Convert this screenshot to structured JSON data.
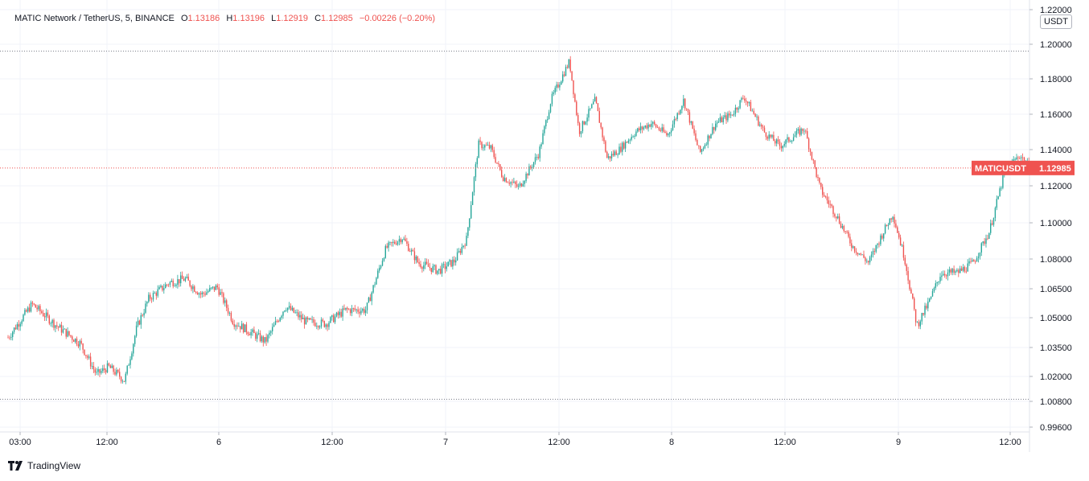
{
  "header": {
    "symbol": "MATIC Network / TetherUS, 5, BINANCE",
    "open_label": "O",
    "open": "1.13186",
    "high_label": "H",
    "high": "1.13196",
    "low_label": "L",
    "low": "1.12919",
    "close_label": "C",
    "close": "1.12985",
    "change": "−0.00226 (−0.20%)"
  },
  "price_axis": {
    "unit": "USDT"
  },
  "last_price_label": {
    "symbol": "MATICUSDT",
    "value": "1.12985"
  },
  "branding": {
    "name": "TradingView"
  },
  "chart_data": {
    "type": "candlestick",
    "interval": "5",
    "exchange": "BINANCE",
    "y_ticks": [
      "1.22000",
      "1.20000",
      "1.18000",
      "1.16000",
      "1.14000",
      "1.12000",
      "1.10000",
      "1.08000",
      "1.06500",
      "1.05000",
      "1.03500",
      "1.02000",
      "1.00800",
      "0.99600"
    ],
    "x_ticks": [
      "03:00",
      "12:00",
      "6",
      "12:00",
      "7",
      "12:00",
      "8",
      "12:00",
      "9",
      "12:00"
    ],
    "ylim": [
      0.996,
      1.22
    ],
    "last_price": 1.12985,
    "range_high": 1.196,
    "range_low": 1.009,
    "colors": {
      "up": "#26a69a",
      "down": "#ef5350",
      "grid": "#f0f3fa",
      "text": "#131722"
    },
    "close_path": [
      [
        0,
        1.04
      ],
      [
        30,
        1.057
      ],
      [
        60,
        1.046
      ],
      [
        90,
        1.037
      ],
      [
        110,
        1.021
      ],
      [
        125,
        1.025
      ],
      [
        145,
        1.018
      ],
      [
        160,
        1.045
      ],
      [
        175,
        1.06
      ],
      [
        200,
        1.068
      ],
      [
        220,
        1.07
      ],
      [
        240,
        1.062
      ],
      [
        260,
        1.066
      ],
      [
        280,
        1.048
      ],
      [
        300,
        1.043
      ],
      [
        320,
        1.038
      ],
      [
        345,
        1.056
      ],
      [
        370,
        1.048
      ],
      [
        395,
        1.047
      ],
      [
        420,
        1.054
      ],
      [
        445,
        1.054
      ],
      [
        470,
        1.086
      ],
      [
        490,
        1.092
      ],
      [
        510,
        1.078
      ],
      [
        535,
        1.074
      ],
      [
        555,
        1.079
      ],
      [
        570,
        1.091
      ],
      [
        585,
        1.143
      ],
      [
        600,
        1.141
      ],
      [
        615,
        1.125
      ],
      [
        635,
        1.119
      ],
      [
        660,
        1.138
      ],
      [
        675,
        1.168
      ],
      [
        698,
        1.19
      ],
      [
        710,
        1.15
      ],
      [
        730,
        1.168
      ],
      [
        745,
        1.135
      ],
      [
        760,
        1.14
      ],
      [
        780,
        1.15
      ],
      [
        800,
        1.155
      ],
      [
        820,
        1.148
      ],
      [
        840,
        1.168
      ],
      [
        860,
        1.138
      ],
      [
        880,
        1.155
      ],
      [
        900,
        1.16
      ],
      [
        915,
        1.17
      ],
      [
        940,
        1.15
      ],
      [
        960,
        1.142
      ],
      [
        990,
        1.152
      ],
      [
        1010,
        1.118
      ],
      [
        1030,
        1.104
      ],
      [
        1050,
        1.087
      ],
      [
        1070,
        1.078
      ],
      [
        1085,
        1.092
      ],
      [
        1100,
        1.105
      ],
      [
        1115,
        1.08
      ],
      [
        1130,
        1.046
      ],
      [
        1145,
        1.058
      ],
      [
        1160,
        1.073
      ],
      [
        1180,
        1.073
      ],
      [
        1200,
        1.078
      ],
      [
        1220,
        1.095
      ],
      [
        1240,
        1.129
      ],
      [
        1258,
        1.137
      ],
      [
        1270,
        1.13
      ]
    ]
  }
}
